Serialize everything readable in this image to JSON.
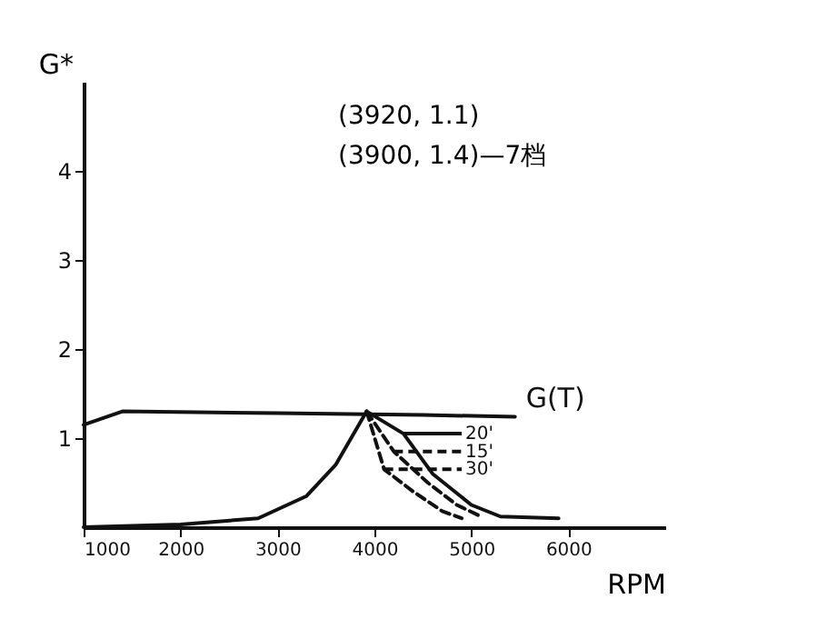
{
  "chart_data": {
    "type": "line",
    "xlabel": "RPM",
    "ylabel": "G*",
    "xlim": [
      1000,
      7000
    ],
    "ylim": [
      0,
      5
    ],
    "xticks": [
      1000,
      2000,
      3000,
      4000,
      5000,
      6000
    ],
    "yticks": [
      1,
      2,
      3,
      4
    ],
    "grid": false,
    "legend": "right",
    "marker": "none",
    "annotations": [
      "(3920, 1.1)",
      "(3900, 1.4)—7档"
    ],
    "series": [
      {
        "name": "G(T)",
        "color": "#111111",
        "line_style": "solid",
        "x": [
          1000,
          1400,
          3000,
          4500,
          5450
        ],
        "values": [
          1.15,
          1.3,
          1.28,
          1.26,
          1.24
        ]
      },
      {
        "name": "20'",
        "color": "#111111",
        "line_style": "solid",
        "x": [
          1000,
          2000,
          2800,
          3300,
          3600,
          3920,
          4300,
          4600,
          5000,
          5300,
          5900
        ],
        "values": [
          0,
          0.03,
          0.1,
          0.35,
          0.7,
          1.3,
          1.05,
          0.6,
          0.25,
          0.12,
          0.1
        ]
      },
      {
        "name": "15'",
        "color": "#111111",
        "line_style": "dashed",
        "x": [
          3920,
          4200,
          4550,
          4850,
          5100
        ],
        "values": [
          1.3,
          0.85,
          0.5,
          0.25,
          0.12
        ]
      },
      {
        "name": "30'",
        "color": "#111111",
        "line_style": "dashed",
        "x": [
          3920,
          4100,
          4400,
          4700,
          4900
        ],
        "values": [
          1.3,
          0.65,
          0.4,
          0.18,
          0.1
        ]
      }
    ]
  }
}
